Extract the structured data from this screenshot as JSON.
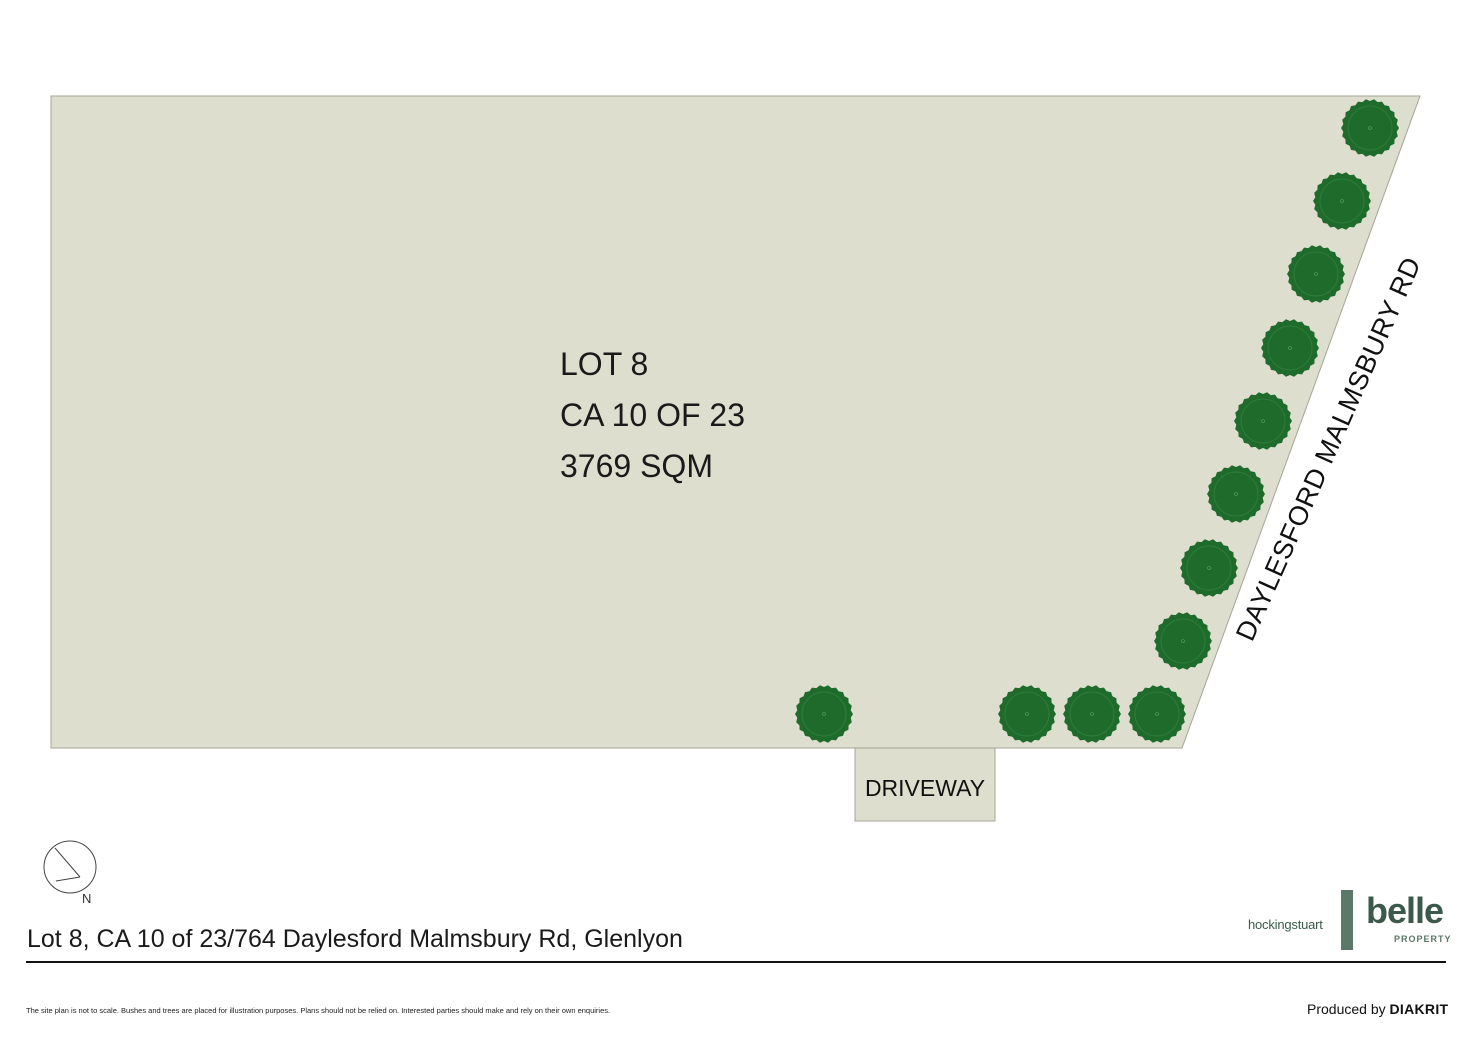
{
  "lot": {
    "line1": "LOT 8",
    "line2": "CA 10 OF 23",
    "line3": "3769 SQM"
  },
  "road": "DAYLESFORD MALMSBURY RD",
  "driveway": "DRIVEWAY",
  "compass": {
    "label": "N"
  },
  "address": "Lot 8, CA 10 of 23/764 Daylesford Malmsbury Rd, Glenlyon",
  "disclaimer": "The site plan is not to scale. Bushes and trees are placed for illustration purposes. Plans should not be relied on. Interested parties should make and rely on their own enquiries.",
  "branding": {
    "agency": "hockingstuart",
    "brand": "belle",
    "brand_sub": "PROPERTY",
    "produced_by": "Produced by",
    "producer": "DIAKRIT"
  },
  "colors": {
    "lot_fill": "#dedecf",
    "lot_stroke": "#a5a596",
    "tree": "#1f6b2c",
    "brand": "#3b5a4b"
  },
  "icons": [
    "compass-icon",
    "tree-icon"
  ]
}
